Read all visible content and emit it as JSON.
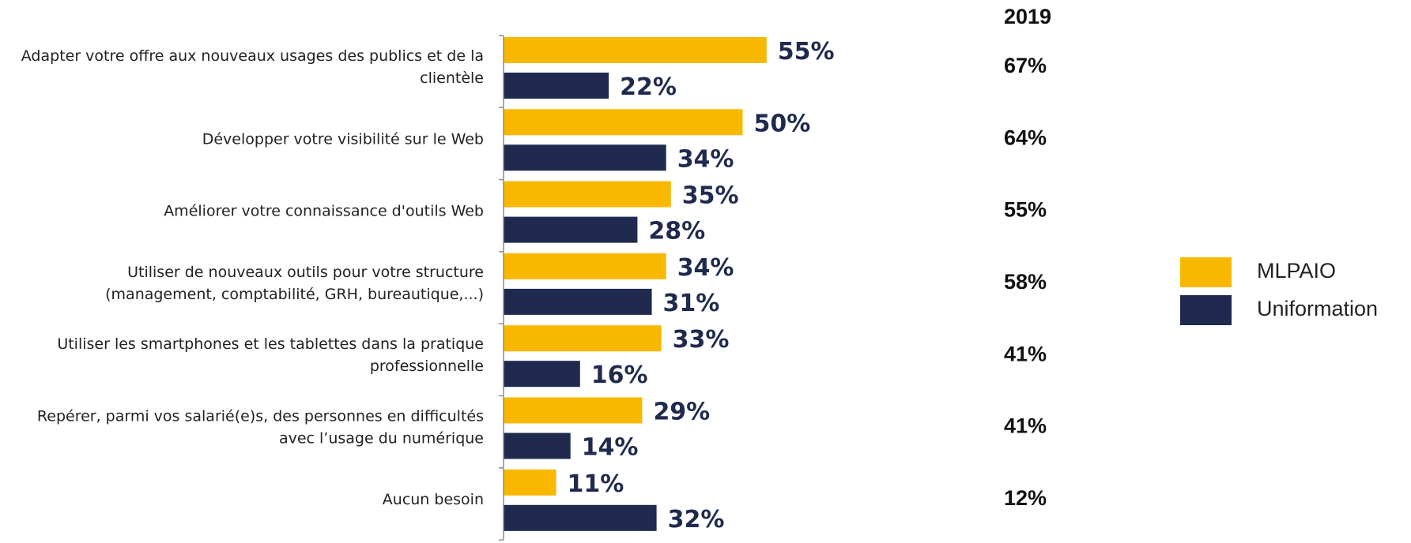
{
  "chart_data": {
    "type": "bar",
    "orientation": "horizontal",
    "categories": [
      "Adapter votre offre aux nouveaux usages des publics et de la\nclientèle",
      "Développer votre visibilité sur le Web",
      "Améliorer votre connaissance d'outils Web",
      "Utiliser de nouveaux outils pour votre structure\n(management, comptabilité, GRH, bureautique,...)",
      "Utiliser les smartphones et les tablettes dans la pratique\nprofessionnelle",
      "Repérer, parmi vos salarié(e)s, des personnes en difficultés\navec l’usage du numérique",
      "Aucun besoin"
    ],
    "series": [
      {
        "name": "MLPAIO",
        "color": "#f9b800",
        "values": [
          55,
          50,
          35,
          34,
          33,
          29,
          11
        ],
        "value_labels": [
          "55%",
          "50%",
          "35%",
          "34%",
          "33%",
          "29%",
          "11%"
        ]
      },
      {
        "name": "Uniformation",
        "color": "#1f2a4e",
        "values": [
          22,
          34,
          28,
          31,
          16,
          14,
          32
        ],
        "value_labels": [
          "22%",
          "34%",
          "28%",
          "31%",
          "16%",
          "14%",
          "32%"
        ]
      }
    ],
    "year_column": {
      "title": "2019",
      "values": [
        67,
        64,
        55,
        58,
        41,
        41,
        12
      ],
      "value_labels": [
        "67%",
        "64%",
        "55%",
        "58%",
        "41%",
        "41%",
        "12%"
      ]
    },
    "xlim": [
      0,
      100
    ],
    "legend": "right"
  }
}
